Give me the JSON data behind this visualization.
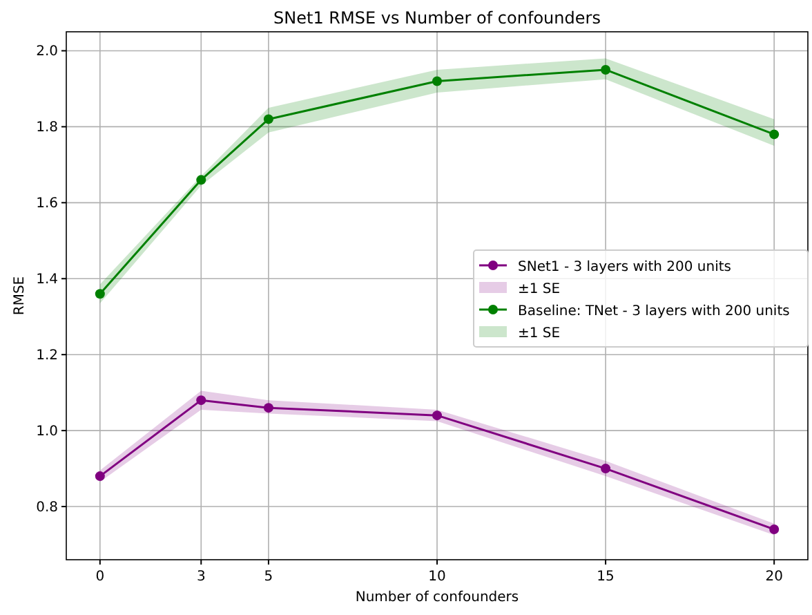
{
  "chart_data": {
    "type": "line",
    "title": "SNet1 RMSE vs Number of confounders",
    "xlabel": "Number of confounders",
    "ylabel": "RMSE",
    "x": [
      0,
      3,
      5,
      10,
      15,
      20
    ],
    "series": [
      {
        "name": "SNet1 - 3 layers with 200 units",
        "color": "#800080",
        "values": [
          0.88,
          1.08,
          1.06,
          1.04,
          0.9,
          0.74
        ],
        "lower": [
          0.865,
          1.055,
          1.045,
          1.025,
          0.88,
          0.725
        ],
        "upper": [
          0.895,
          1.105,
          1.08,
          1.055,
          0.92,
          0.755
        ]
      },
      {
        "name": "Baseline: TNet - 3 layers with 200 units",
        "color": "#008000",
        "values": [
          1.36,
          1.66,
          1.82,
          1.92,
          1.95,
          1.78
        ],
        "lower": [
          1.335,
          1.645,
          1.785,
          1.89,
          1.925,
          1.75
        ],
        "upper": [
          1.385,
          1.67,
          1.85,
          1.95,
          1.98,
          1.82
        ]
      }
    ],
    "xlim": [
      -1,
      21
    ],
    "xticks": [
      0,
      3,
      5,
      10,
      15,
      20
    ],
    "ylim": [
      0.66,
      2.05
    ],
    "yticks": [
      {
        "value": 0.8,
        "label": "0.8"
      },
      {
        "value": 1.0,
        "label": "1.0"
      },
      {
        "value": 1.2,
        "label": "1.2"
      },
      {
        "value": 1.4,
        "label": "1.4"
      },
      {
        "value": 1.6,
        "label": "1.6"
      },
      {
        "value": 1.8,
        "label": "1.8"
      },
      {
        "value": 2.0,
        "label": "2.0"
      }
    ],
    "annotations": [
      "±1 SE",
      "±1 SE"
    ],
    "grid": true,
    "legend": "right",
    "marker": "circle",
    "line_style": "solid"
  }
}
